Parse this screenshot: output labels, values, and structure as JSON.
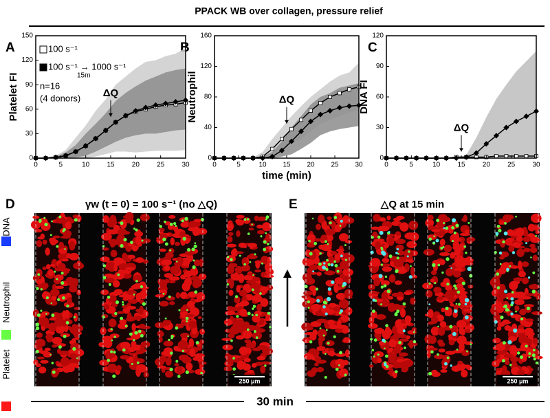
{
  "title": "PPACK WB over collagen, pressure relief",
  "panel_labels": [
    "A",
    "B",
    "C",
    "D",
    "E"
  ],
  "chart_data": [
    {
      "type": "line",
      "ylabel": "Platelet FI",
      "x": [
        0,
        2,
        4,
        6,
        8,
        10,
        12,
        14,
        16,
        18,
        20,
        22,
        24,
        26,
        28,
        30
      ],
      "xlim": [
        0,
        30
      ],
      "xticks": [
        0,
        5,
        10,
        15,
        20,
        25,
        30
      ],
      "ylim": [
        0,
        150
      ],
      "yticks": [
        0,
        30,
        60,
        90,
        120,
        150
      ],
      "legend": true,
      "legend_note": "15m",
      "annotations": [
        "n=16",
        "(4 donors)"
      ],
      "delta_q": {
        "label": "ΔQ",
        "x": 15
      },
      "series": [
        {
          "name": "100 s⁻¹",
          "color": "#ffffff",
          "marker": "square",
          "band_color": "#cdcdcd",
          "values": [
            0,
            0,
            1,
            3,
            8,
            15,
            24,
            34,
            44,
            52,
            57,
            60,
            63,
            65,
            66,
            68
          ],
          "lower": [
            0,
            0,
            0,
            0,
            0,
            0,
            2,
            5,
            8,
            8,
            7,
            8,
            9,
            9,
            9,
            10
          ],
          "upper": [
            0,
            1,
            3,
            10,
            25,
            40,
            58,
            72,
            90,
            100,
            110,
            118,
            120,
            125,
            128,
            135
          ]
        },
        {
          "name": "100 s⁻¹ → 1000 s⁻¹",
          "color": "#000000",
          "marker": "diamond",
          "band_color": "#8c8c8c",
          "values": [
            0,
            0,
            1,
            3,
            8,
            15,
            24,
            34,
            44,
            52,
            58,
            62,
            65,
            67,
            69,
            71
          ],
          "lower": [
            0,
            0,
            0,
            0,
            1,
            3,
            8,
            14,
            20,
            25,
            28,
            30,
            30,
            32,
            34,
            35
          ],
          "upper": [
            0,
            1,
            2,
            7,
            16,
            30,
            42,
            55,
            70,
            80,
            88,
            95,
            100,
            105,
            108,
            110
          ]
        }
      ]
    },
    {
      "type": "line",
      "ylabel": "Neutrophil",
      "xlabel": "time (min)",
      "x": [
        0,
        2,
        4,
        6,
        8,
        10,
        12,
        14,
        16,
        18,
        20,
        22,
        24,
        26,
        28,
        30
      ],
      "xlim": [
        0,
        30
      ],
      "xticks": [
        0,
        5,
        10,
        15,
        20,
        25,
        30
      ],
      "ylim": [
        0,
        160
      ],
      "yticks": [
        0,
        40,
        80,
        120,
        160
      ],
      "delta_q": {
        "label": "ΔQ",
        "x": 15
      },
      "series": [
        {
          "color": "#ffffff",
          "marker": "square",
          "band_color": "#cdcdcd",
          "values": [
            0,
            0,
            0,
            0,
            0,
            2,
            12,
            25,
            38,
            50,
            62,
            72,
            80,
            85,
            90,
            93
          ],
          "lower": [
            0,
            0,
            0,
            0,
            0,
            0,
            5,
            12,
            20,
            25,
            35,
            45,
            50,
            55,
            60,
            62
          ],
          "upper": [
            0,
            0,
            0,
            0,
            1,
            8,
            25,
            40,
            55,
            68,
            80,
            90,
            100,
            108,
            112,
            125
          ]
        },
        {
          "color": "#000000",
          "marker": "diamond",
          "band_color": "#8c8c8c",
          "values": [
            0,
            0,
            0,
            0,
            0,
            0,
            2,
            10,
            22,
            35,
            48,
            57,
            62,
            66,
            68,
            69
          ],
          "lower": [
            0,
            0,
            0,
            0,
            0,
            0,
            0,
            2,
            5,
            12,
            20,
            30,
            35,
            38,
            40,
            42
          ],
          "upper": [
            0,
            0,
            0,
            0,
            0,
            2,
            8,
            22,
            40,
            55,
            70,
            80,
            85,
            92,
            95,
            98
          ]
        }
      ]
    },
    {
      "type": "line",
      "ylabel": "DNA FI",
      "x": [
        0,
        2,
        4,
        6,
        8,
        10,
        12,
        14,
        16,
        18,
        20,
        22,
        24,
        26,
        28,
        30
      ],
      "xlim": [
        0,
        30
      ],
      "xticks": [
        0,
        5,
        10,
        15,
        20,
        25,
        30
      ],
      "ylim": [
        0,
        120
      ],
      "yticks": [
        0,
        30,
        60,
        90,
        120
      ],
      "delta_q": {
        "label": "ΔQ",
        "x": 15
      },
      "series": [
        {
          "color": "#ffffff",
          "marker": "square",
          "values": [
            0,
            0,
            0,
            0,
            0,
            0,
            0,
            1,
            1,
            1,
            1,
            2,
            2,
            2,
            2,
            2
          ]
        },
        {
          "color": "#000000",
          "marker": "diamond",
          "band_color": "#bdbdbd",
          "values": [
            0,
            0,
            0,
            0,
            0,
            0,
            0,
            0,
            1,
            5,
            14,
            22,
            30,
            36,
            41,
            46
          ],
          "lower": [
            0,
            0,
            0,
            0,
            0,
            0,
            0,
            0,
            0,
            0,
            0,
            0,
            0,
            0,
            0,
            0
          ],
          "upper": [
            0,
            0,
            0,
            0,
            0,
            0,
            0,
            1,
            3,
            20,
            40,
            58,
            72,
            85,
            95,
            105
          ]
        }
      ]
    }
  ],
  "images": {
    "d_title": "γw (t = 0) = 100 s⁻¹ (no △Q)",
    "e_title": "△Q at 15 min",
    "scale_bars": [
      "250 μm",
      "250 μm"
    ],
    "duration": "30 min",
    "channels": [
      {
        "name": "DNA",
        "color": "#1a3cff"
      },
      {
        "name": "Neutrophil",
        "color": "#66ff44"
      },
      {
        "name": "Platelet",
        "color": "#ff1a1a"
      }
    ]
  }
}
